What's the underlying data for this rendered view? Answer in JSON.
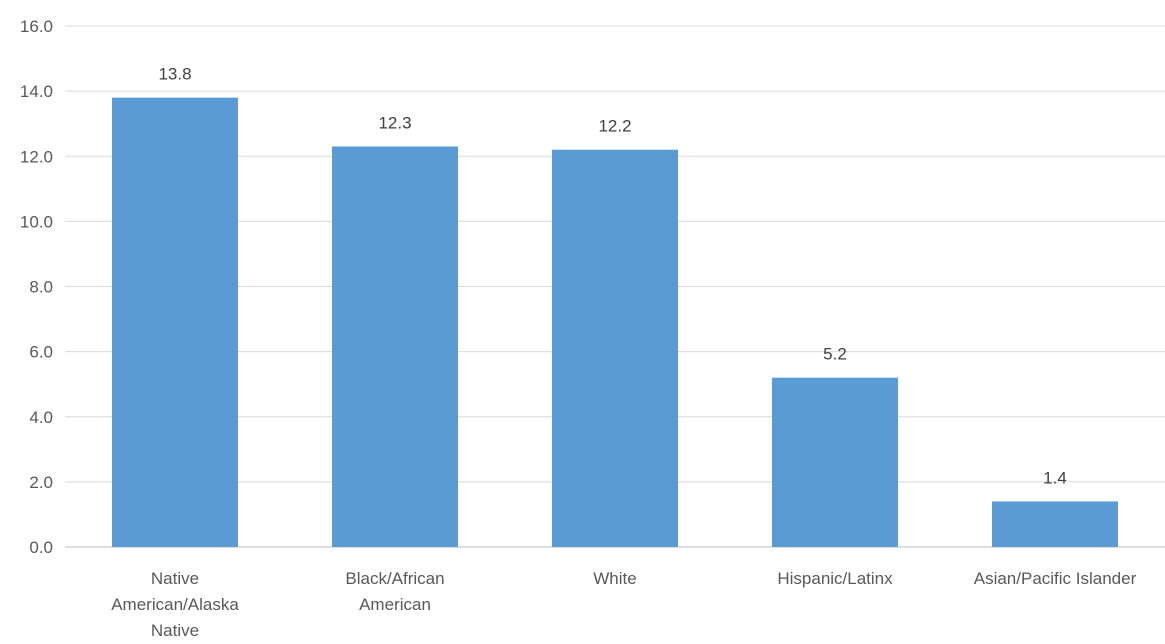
{
  "chart_data": {
    "type": "bar",
    "title": "",
    "xlabel": "",
    "ylabel": "",
    "categories": [
      [
        "Native",
        "American/Alaska",
        "Native"
      ],
      [
        "Black/African",
        "American"
      ],
      [
        "White"
      ],
      [
        "Hispanic/Latinx"
      ],
      [
        "Asian/Pacific Islander"
      ]
    ],
    "values": [
      13.8,
      12.3,
      12.2,
      5.2,
      1.4
    ],
    "data_labels": [
      "13.8",
      "12.3",
      "12.2",
      "5.2",
      "1.4"
    ],
    "ylim": [
      0,
      16
    ],
    "yticks": [
      "0.0",
      "2.0",
      "4.0",
      "6.0",
      "8.0",
      "10.0",
      "12.0",
      "14.0",
      "16.0"
    ],
    "grid": true,
    "legend": "none",
    "bar_color": "#5b9bd5"
  }
}
